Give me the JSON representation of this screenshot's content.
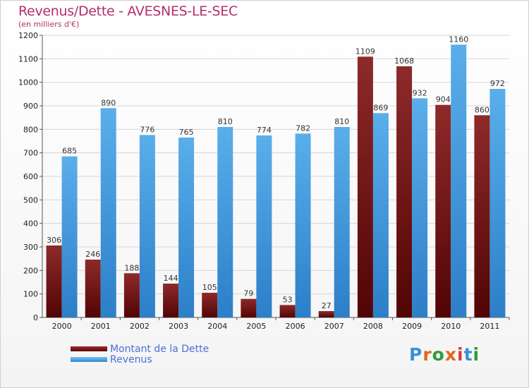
{
  "title": "Revenus/Dette - AVESNES-LE-SEC",
  "subtitle": "(en milliers d'€)",
  "logo_text": "Proxiti",
  "colors": {
    "title": "#b3306a",
    "dette": "#7a1010",
    "revenus": "#4a9fe0",
    "legend_text": "#4a6fd8"
  },
  "chart_data": {
    "type": "bar",
    "categories": [
      "2000",
      "2001",
      "2002",
      "2003",
      "2004",
      "2005",
      "2006",
      "2007",
      "2008",
      "2009",
      "2010",
      "2011"
    ],
    "series": [
      {
        "name": "Montant de la Dette",
        "values": [
          306,
          246,
          188,
          144,
          105,
          79,
          53,
          27,
          1109,
          1068,
          904,
          860
        ]
      },
      {
        "name": "Revenus",
        "values": [
          685,
          890,
          776,
          765,
          810,
          774,
          782,
          810,
          869,
          932,
          1160,
          972
        ]
      }
    ],
    "ylim": [
      0,
      1200
    ],
    "yticks": [
      0,
      100,
      200,
      300,
      400,
      500,
      600,
      700,
      800,
      900,
      1000,
      1100,
      1200
    ],
    "grid": true,
    "legend_position": "bottom-left"
  }
}
